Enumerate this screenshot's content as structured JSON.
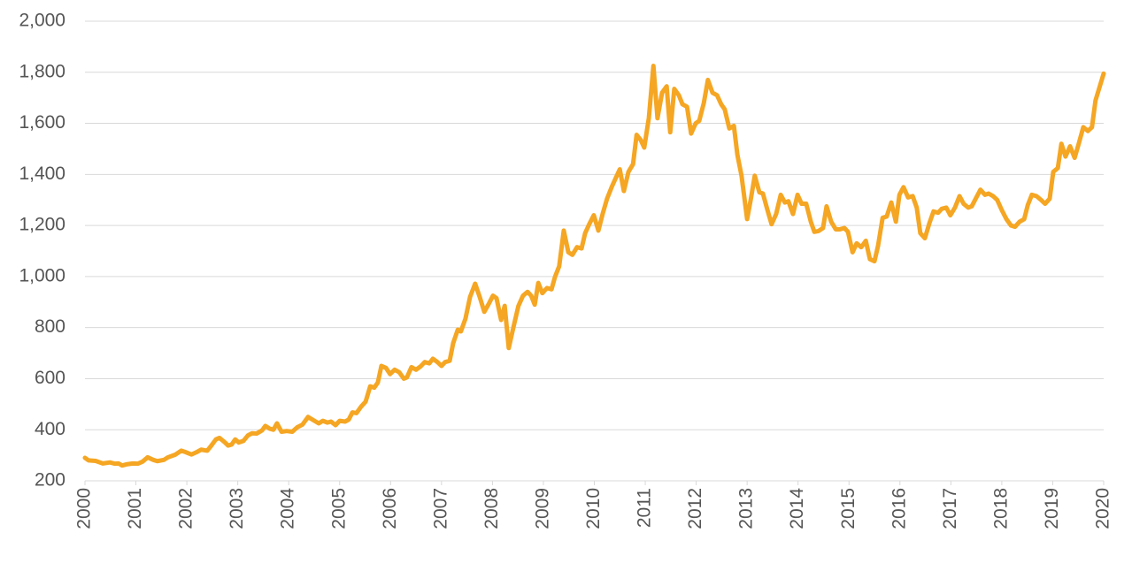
{
  "chart_data": {
    "type": "line",
    "x": [
      2000.0,
      2000.07,
      2000.21,
      2000.35,
      2000.49,
      2000.59,
      2000.66,
      2000.73,
      2000.83,
      2000.94,
      2001.04,
      2001.13,
      2001.23,
      2001.34,
      2001.42,
      2001.55,
      2001.63,
      2001.77,
      2001.89,
      2001.98,
      2002.09,
      2002.19,
      2002.28,
      2002.4,
      2002.47,
      2002.57,
      2002.64,
      2002.75,
      2002.81,
      2002.88,
      2002.95,
      2003.02,
      2003.11,
      2003.2,
      2003.28,
      2003.37,
      2003.48,
      2003.54,
      2003.63,
      2003.7,
      2003.77,
      2003.86,
      2003.96,
      2004.07,
      2004.17,
      2004.27,
      2004.38,
      2004.48,
      2004.59,
      2004.67,
      2004.76,
      2004.83,
      2004.92,
      2005.0,
      2005.11,
      2005.18,
      2005.25,
      2005.33,
      2005.42,
      2005.51,
      2005.6,
      2005.68,
      2005.75,
      2005.82,
      2005.91,
      2005.99,
      2006.08,
      2006.17,
      2006.26,
      2006.32,
      2006.41,
      2006.5,
      2006.59,
      2006.67,
      2006.76,
      2006.83,
      2006.92,
      2007.0,
      2007.07,
      2007.16,
      2007.23,
      2007.32,
      2007.38,
      2007.47,
      2007.56,
      2007.66,
      2007.75,
      2007.84,
      2007.92,
      2008.01,
      2008.08,
      2008.17,
      2008.24,
      2008.32,
      2008.41,
      2008.51,
      2008.6,
      2008.69,
      2008.76,
      2008.83,
      2008.9,
      2008.98,
      2009.07,
      2009.16,
      2009.23,
      2009.31,
      2009.4,
      2009.49,
      2009.57,
      2009.66,
      2009.75,
      2009.82,
      2009.9,
      2009.99,
      2010.08,
      2010.17,
      2010.25,
      2010.34,
      2010.43,
      2010.5,
      2010.58,
      2010.67,
      2010.76,
      2010.83,
      2010.91,
      2010.98,
      2011.07,
      2011.16,
      2011.24,
      2011.33,
      2011.42,
      2011.49,
      2011.57,
      2011.66,
      2011.73,
      2011.82,
      2011.9,
      2011.99,
      2012.06,
      2012.15,
      2012.23,
      2012.32,
      2012.41,
      2012.49,
      2012.56,
      2012.65,
      2012.74,
      2012.81,
      2012.89,
      2013.0,
      2013.07,
      2013.15,
      2013.24,
      2013.31,
      2013.4,
      2013.48,
      2013.57,
      2013.66,
      2013.74,
      2013.81,
      2013.9,
      2013.99,
      2014.07,
      2014.16,
      2014.25,
      2014.32,
      2014.4,
      2014.49,
      2014.56,
      2014.65,
      2014.74,
      2014.82,
      2014.91,
      2014.98,
      2015.07,
      2015.15,
      2015.24,
      2015.33,
      2015.41,
      2015.5,
      2015.57,
      2015.66,
      2015.74,
      2015.83,
      2015.92,
      2015.99,
      2016.07,
      2016.16,
      2016.25,
      2016.33,
      2016.4,
      2016.49,
      2016.58,
      2016.66,
      2016.75,
      2016.82,
      2016.91,
      2016.99,
      2017.08,
      2017.17,
      2017.25,
      2017.34,
      2017.41,
      2017.5,
      2017.58,
      2017.67,
      2017.74,
      2017.83,
      2017.91,
      2018.0,
      2018.09,
      2018.18,
      2018.26,
      2018.35,
      2018.44,
      2018.51,
      2018.59,
      2018.68,
      2018.77,
      2018.85,
      2018.94,
      2019.01,
      2019.1,
      2019.17,
      2019.25,
      2019.34,
      2019.43,
      2019.51,
      2019.6,
      2019.69,
      2019.77,
      2019.84,
      2020.0
    ],
    "series": [
      {
        "color": "#f5a623",
        "values": [
          290,
          280,
          278,
          268,
          272,
          267,
          268,
          260,
          265,
          268,
          267,
          275,
          292,
          282,
          277,
          282,
          292,
          302,
          318,
          312,
          303,
          312,
          322,
          318,
          335,
          362,
          368,
          350,
          338,
          342,
          362,
          350,
          356,
          378,
          386,
          385,
          398,
          415,
          404,
          400,
          425,
          392,
          395,
          392,
          410,
          420,
          450,
          438,
          425,
          435,
          428,
          432,
          418,
          435,
          432,
          440,
          468,
          465,
          490,
          510,
          570,
          565,
          585,
          650,
          642,
          618,
          635,
          625,
          600,
          605,
          645,
          635,
          648,
          665,
          660,
          678,
          665,
          650,
          665,
          670,
          740,
          792,
          785,
          835,
          920,
          972,
          920,
          862,
          890,
          925,
          915,
          830,
          885,
          720,
          800,
          885,
          925,
          940,
          925,
          890,
          975,
          935,
          955,
          950,
          1000,
          1040,
          1180,
          1095,
          1085,
          1115,
          1110,
          1170,
          1205,
          1240,
          1180,
          1250,
          1305,
          1350,
          1390,
          1420,
          1335,
          1410,
          1440,
          1555,
          1535,
          1505,
          1620,
          1825,
          1620,
          1720,
          1745,
          1565,
          1735,
          1710,
          1675,
          1665,
          1560,
          1600,
          1610,
          1680,
          1770,
          1720,
          1710,
          1675,
          1655,
          1580,
          1590,
          1475,
          1395,
          1225,
          1300,
          1395,
          1330,
          1325,
          1260,
          1205,
          1245,
          1320,
          1290,
          1295,
          1245,
          1320,
          1285,
          1285,
          1215,
          1175,
          1178,
          1190,
          1275,
          1215,
          1185,
          1185,
          1190,
          1175,
          1095,
          1130,
          1115,
          1140,
          1068,
          1060,
          1120,
          1230,
          1235,
          1290,
          1215,
          1320,
          1350,
          1310,
          1315,
          1270,
          1170,
          1150,
          1210,
          1255,
          1250,
          1265,
          1270,
          1240,
          1270,
          1315,
          1285,
          1270,
          1275,
          1310,
          1340,
          1320,
          1325,
          1315,
          1300,
          1260,
          1225,
          1200,
          1195,
          1215,
          1225,
          1280,
          1320,
          1315,
          1300,
          1285,
          1305,
          1410,
          1425,
          1520,
          1470,
          1510,
          1465,
          1520,
          1585,
          1570,
          1585,
          1690,
          1795
        ]
      }
    ],
    "xlim": [
      2000,
      2020
    ],
    "xticks": [
      2000,
      2001,
      2002,
      2003,
      2004,
      2005,
      2006,
      2007,
      2008,
      2009,
      2010,
      2011,
      2012,
      2013,
      2014,
      2015,
      2016,
      2017,
      2018,
      2019,
      2020
    ],
    "ylim": [
      200,
      2000
    ],
    "yticks": [
      200,
      400,
      600,
      800,
      {
        "value": 1000,
        "label": "1,000"
      },
      {
        "value": 1200,
        "label": "1,200"
      },
      {
        "value": 1400,
        "label": "1,400"
      },
      {
        "value": 1600,
        "label": "1,600"
      },
      {
        "value": 1800,
        "label": "1,800"
      },
      {
        "value": 2000,
        "label": "2,000"
      }
    ],
    "grid": true
  }
}
